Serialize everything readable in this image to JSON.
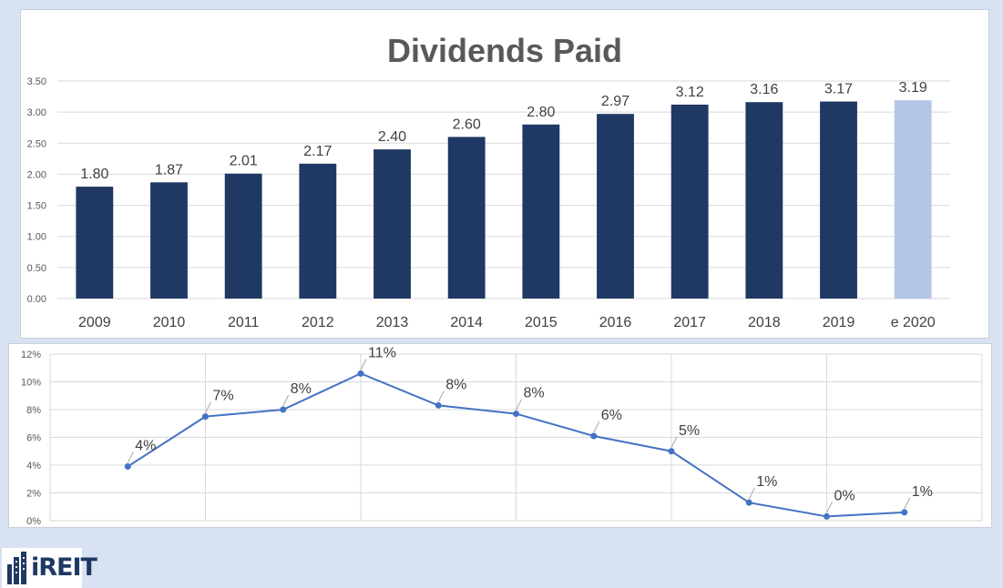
{
  "chart_data": [
    {
      "type": "bar",
      "title": "Dividends Paid",
      "categories": [
        "2009",
        "2010",
        "2011",
        "2012",
        "2013",
        "2014",
        "2015",
        "2016",
        "2017",
        "2018",
        "2019",
        "e 2020"
      ],
      "values": [
        1.8,
        1.87,
        2.01,
        2.17,
        2.4,
        2.6,
        2.8,
        2.97,
        3.12,
        3.16,
        3.17,
        3.19
      ],
      "value_labels": [
        "1.80",
        "1.87",
        "2.01",
        "2.17",
        "2.40",
        "2.60",
        "2.80",
        "2.97",
        "3.12",
        "3.16",
        "3.17",
        "3.19"
      ],
      "yticks": [
        "0.00",
        "0.50",
        "1.00",
        "1.50",
        "2.00",
        "2.50",
        "3.00",
        "3.50"
      ],
      "ylim": [
        0,
        3.5
      ],
      "grid": true,
      "colors": {
        "actual": "#1f3864",
        "estimate": "#b4c6e7"
      },
      "estimate_index": 11
    },
    {
      "type": "line",
      "values": [
        3.9,
        7.5,
        8.0,
        10.6,
        8.3,
        7.7,
        6.1,
        5.0,
        1.3,
        0.3,
        0.6
      ],
      "value_labels": [
        "4%",
        "7%",
        "8%",
        "11%",
        "8%",
        "8%",
        "6%",
        "5%",
        "1%",
        "0%",
        "1%"
      ],
      "yticks": [
        "0%",
        "2%",
        "4%",
        "6%",
        "8%",
        "10%",
        "12%"
      ],
      "ylim": [
        0,
        12
      ],
      "grid": true,
      "color": "#4472c4"
    }
  ],
  "logo": {
    "text": "iREIT",
    "color": "#1f3864"
  }
}
